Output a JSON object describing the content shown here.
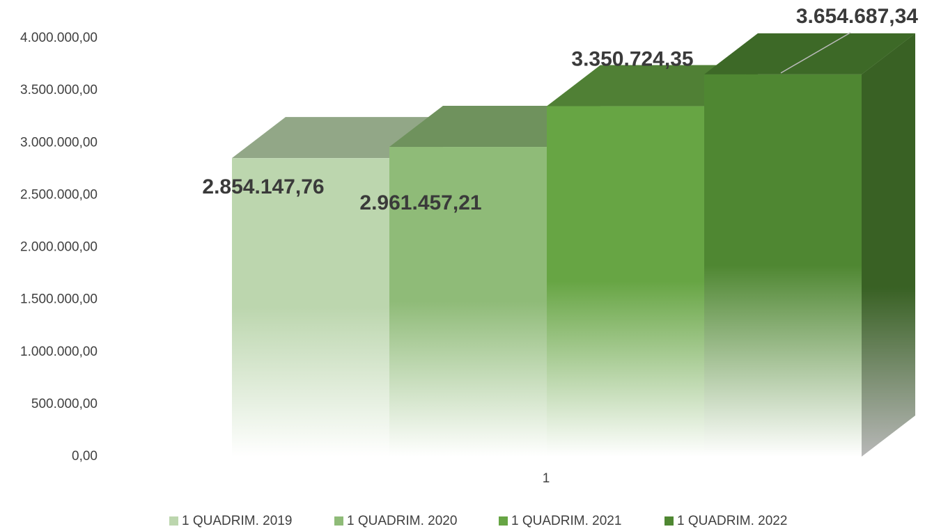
{
  "chart_data": {
    "type": "bar3d",
    "categories": [
      "1"
    ],
    "series": [
      {
        "name": "1 QUADRIM. 2019",
        "color": "#bcd6ae",
        "values": [
          2854147.76
        ],
        "value_labels": [
          "2.854.147,76"
        ]
      },
      {
        "name": "1 QUADRIM. 2020",
        "color": "#8fbb78",
        "values": [
          2961457.21
        ],
        "value_labels": [
          "2.961.457,21"
        ]
      },
      {
        "name": "1 QUADRIM. 2021",
        "color": "#67a544",
        "values": [
          3350724.35
        ],
        "value_labels": [
          "3.350.724,35"
        ]
      },
      {
        "name": "1 QUADRIM. 2022",
        "color": "#4f8732",
        "values": [
          3654687.34
        ],
        "value_labels": [
          "3.654.687,34"
        ]
      }
    ],
    "ylim": [
      0,
      4000000
    ],
    "yticks": [
      {
        "value": 0,
        "label": "0,00"
      },
      {
        "value": 500000,
        "label": "500.000,00"
      },
      {
        "value": 1000000,
        "label": "1.000.000,00"
      },
      {
        "value": 1500000,
        "label": "1.500.000,00"
      },
      {
        "value": 2000000,
        "label": "2.000.000,00"
      },
      {
        "value": 2500000,
        "label": "2.500.000,00"
      },
      {
        "value": 3000000,
        "label": "3.000.000,00"
      },
      {
        "value": 3500000,
        "label": "3.500.000,00"
      },
      {
        "value": 4000000,
        "label": "4.000.000,00"
      }
    ],
    "grid": false,
    "legend": "bottom"
  }
}
